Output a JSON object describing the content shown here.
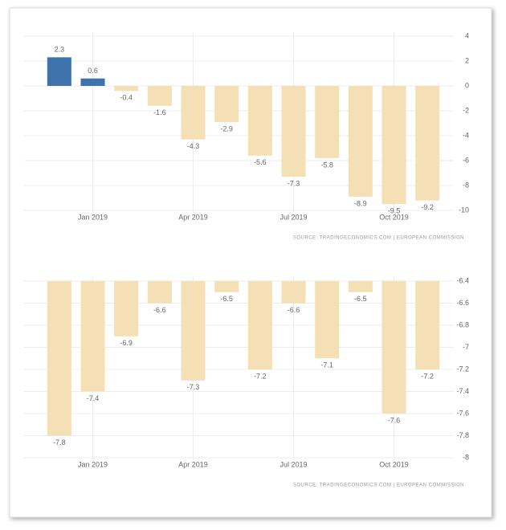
{
  "chart_data": [
    {
      "type": "bar",
      "categories": [
        null,
        "Jan 2019",
        null,
        null,
        "Apr 2019",
        null,
        null,
        "Jul 2019",
        null,
        null,
        "Oct 2019",
        null
      ],
      "values": [
        2.3,
        0.6,
        -0.4,
        -1.6,
        -4.3,
        -2.9,
        -5.6,
        -7.3,
        -5.8,
        -8.9,
        -9.5,
        -9.2
      ],
      "colors": [
        "#3e72aa",
        "#3e72aa",
        "#f5dfb4",
        "#f5dfb4",
        "#f5dfb4",
        "#f5dfb4",
        "#f5dfb4",
        "#f5dfb4",
        "#f5dfb4",
        "#f5dfb4",
        "#f5dfb4",
        "#f5dfb4"
      ],
      "ylim": [
        -10,
        4
      ],
      "yticks": [
        4,
        2,
        0,
        -2,
        -4,
        -6,
        -8,
        -10
      ],
      "grid": true,
      "source": "SOURCE: TRADINGECONOMICS.COM | EUROPEAN COMMISSION"
    },
    {
      "type": "bar",
      "categories": [
        null,
        "Jan 2019",
        null,
        null,
        "Apr 2019",
        null,
        null,
        "Jul 2019",
        null,
        null,
        "Oct 2019",
        null
      ],
      "values": [
        -7.8,
        -7.4,
        -6.9,
        -6.6,
        -7.3,
        -6.5,
        -7.2,
        -6.6,
        -7.1,
        -6.5,
        -7.6,
        -7.2
      ],
      "colors": [
        "#f5dfb4",
        "#f5dfb4",
        "#f5dfb4",
        "#f5dfb4",
        "#f5dfb4",
        "#f5dfb4",
        "#f5dfb4",
        "#f5dfb4",
        "#f5dfb4",
        "#f5dfb4",
        "#f5dfb4",
        "#f5dfb4"
      ],
      "ylim": [
        -8,
        -6.4
      ],
      "yticks": [
        -6.4,
        -6.6,
        -6.8,
        -7,
        -7.2,
        -7.4,
        -7.6,
        -7.8,
        -8
      ],
      "grid": true,
      "source": "SOURCE: TRADINGECONOMICS.COM | EUROPEAN COMMISSION"
    }
  ]
}
